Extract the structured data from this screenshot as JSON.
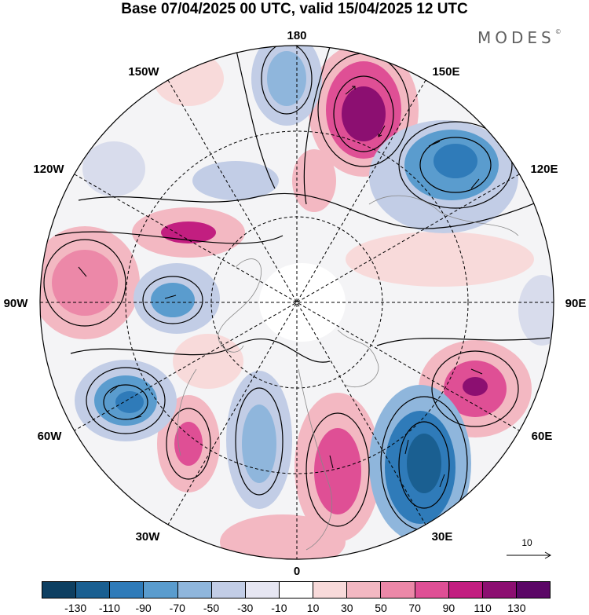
{
  "title": "Base 07/04/2025 00 UTC, valid 15/04/2025 12 UTC",
  "brand": "MODES",
  "brand_mark": "©",
  "longitude_labels": {
    "n": "180",
    "ne": "150E",
    "ene": "120E",
    "e": "90E",
    "ese": "60E",
    "se": "30E",
    "s": "0",
    "sw": "30W",
    "wsw": "60W",
    "w": "90W",
    "wnw": "120W",
    "nw": "150W"
  },
  "reference_vector": {
    "label": "10"
  },
  "colorbar": {
    "colors": [
      "#0d3f61",
      "#1a5f91",
      "#2f7bb9",
      "#5a9cce",
      "#8fb6dc",
      "#c2cde6",
      "#e6e6f2",
      "#ffffff",
      "#f8dada",
      "#f3b8c2",
      "#ec88a8",
      "#df4f95",
      "#c21e80",
      "#8c0f71",
      "#5b0766"
    ],
    "labels": [
      "-130",
      "-110",
      "-90",
      "-70",
      "-50",
      "-30",
      "-10",
      "10",
      "30",
      "50",
      "70",
      "90",
      "110",
      "130"
    ]
  },
  "colors": {
    "land_gray": "#eeeeee",
    "coast": "#888888",
    "grid": "#000000"
  }
}
